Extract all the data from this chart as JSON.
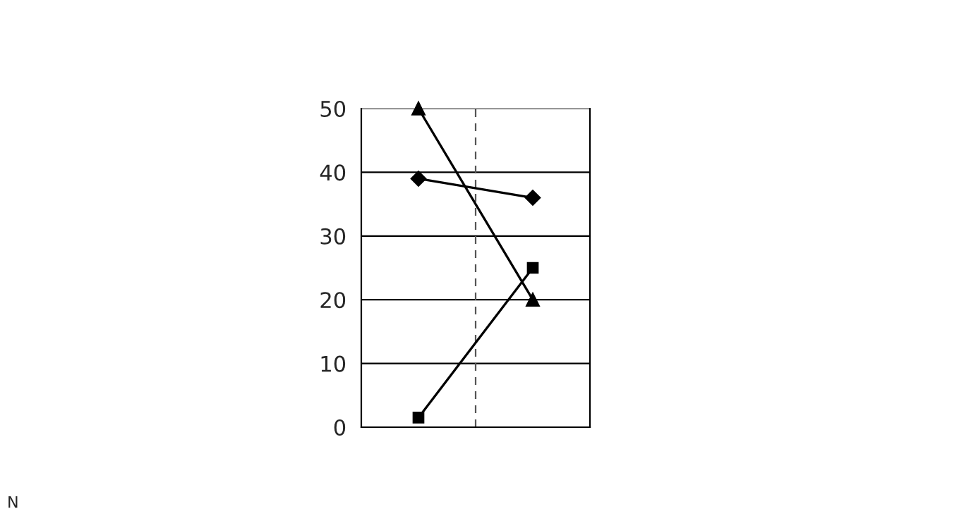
{
  "chart_data": {
    "type": "line",
    "categories": [
      null,
      null
    ],
    "series": [
      {
        "color": "#000000",
        "marker": "diamond",
        "values": [
          39,
          36
        ]
      },
      {
        "color": "#000000",
        "marker": "square",
        "values": [
          1.5,
          25
        ]
      },
      {
        "color": "#000000",
        "marker": "triangle",
        "values": [
          50,
          20
        ]
      }
    ],
    "ylim": [
      0,
      50
    ],
    "yticks": [
      0,
      10,
      20,
      30,
      40,
      50
    ],
    "grid": true,
    "line_style": "solid",
    "annotations": [
      "N"
    ]
  }
}
